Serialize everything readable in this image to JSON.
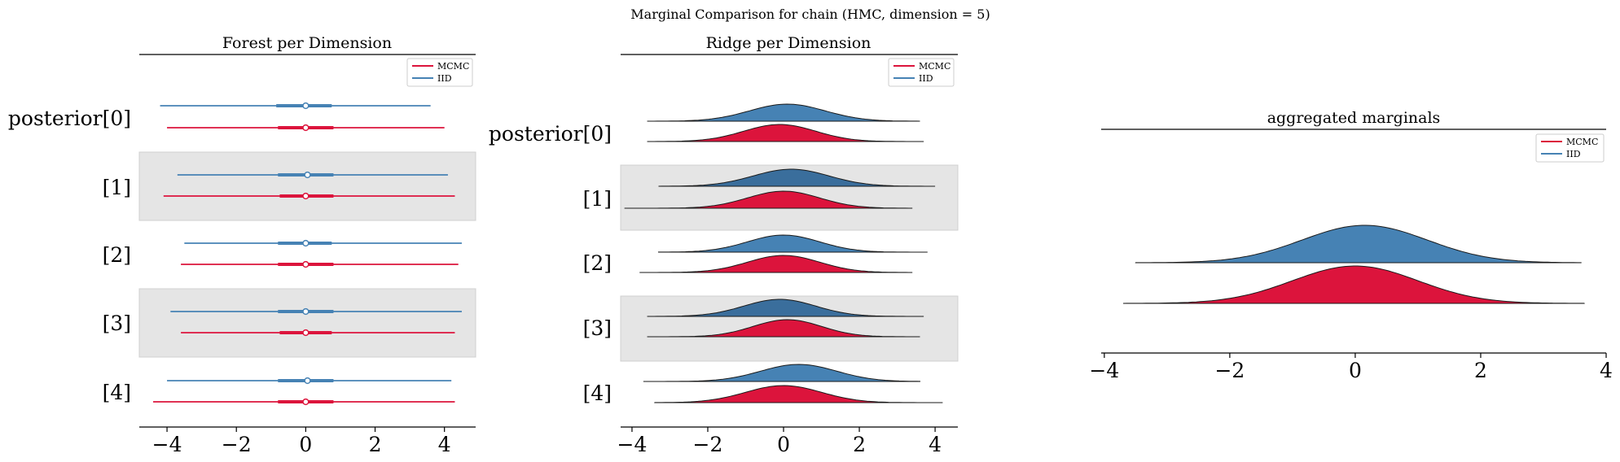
{
  "figure": {
    "suptitle": "Marginal Comparison for chain (HMC, dimension = 5)"
  },
  "colors": {
    "mcmc": "#dc143c",
    "iid": "#4682b4",
    "band": "#e5e5e5",
    "ridge_iid_dark": "#3a6e9c"
  },
  "chart_data": [
    {
      "type": "forest",
      "title": "Forest per Dimension",
      "xlim": [
        -4.8,
        4.9
      ],
      "xticks": [
        -4,
        -2,
        0,
        2,
        4
      ],
      "xtick_labels": [
        "−4",
        "−2",
        "0",
        "2",
        "4"
      ],
      "ylabels": [
        "posterior[0]",
        "[1]",
        "[2]",
        "[3]",
        "[4]"
      ],
      "shaded_rows": [
        1,
        3
      ],
      "legend": {
        "position": "top-right",
        "entries": [
          {
            "label": "MCMC",
            "color": "#dc143c"
          },
          {
            "label": "IID",
            "color": "#4682b4"
          }
        ]
      },
      "series": [
        {
          "name": "IID",
          "color": "#4682b4",
          "rows": [
            {
              "min": -4.2,
              "q25": -0.85,
              "median": 0.0,
              "q75": 0.75,
              "max": 3.6
            },
            {
              "min": -3.7,
              "q25": -0.8,
              "median": 0.05,
              "q75": 0.8,
              "max": 4.1
            },
            {
              "min": -3.5,
              "q25": -0.8,
              "median": 0.0,
              "q75": 0.75,
              "max": 4.5
            },
            {
              "min": -3.9,
              "q25": -0.8,
              "median": 0.0,
              "q75": 0.8,
              "max": 4.5
            },
            {
              "min": -4.0,
              "q25": -0.8,
              "median": 0.05,
              "q75": 0.8,
              "max": 4.2
            }
          ]
        },
        {
          "name": "MCMC",
          "color": "#dc143c",
          "rows": [
            {
              "min": -4.0,
              "q25": -0.8,
              "median": 0.0,
              "q75": 0.8,
              "max": 4.0
            },
            {
              "min": -4.1,
              "q25": -0.75,
              "median": 0.0,
              "q75": 0.8,
              "max": 4.3
            },
            {
              "min": -3.6,
              "q25": -0.8,
              "median": 0.0,
              "q75": 0.8,
              "max": 4.4
            },
            {
              "min": -3.6,
              "q25": -0.75,
              "median": 0.0,
              "q75": 0.75,
              "max": 4.3
            },
            {
              "min": -4.4,
              "q25": -0.8,
              "median": 0.0,
              "q75": 0.8,
              "max": 4.3
            }
          ]
        }
      ]
    },
    {
      "type": "ridge",
      "title": "Ridge per Dimension",
      "xlim": [
        -4.3,
        4.6
      ],
      "xticks": [
        -4,
        -2,
        0,
        2,
        4
      ],
      "xtick_labels": [
        "−4",
        "−2",
        "0",
        "2",
        "4"
      ],
      "ylabels": [
        "posterior[0]",
        "[1]",
        "[2]",
        "[3]",
        "[4]"
      ],
      "shaded_rows": [
        1,
        3
      ],
      "legend": {
        "position": "top-right",
        "entries": [
          {
            "label": "MCMC",
            "color": "#dc143c"
          },
          {
            "label": "IID",
            "color": "#4682b4"
          }
        ]
      },
      "series": [
        {
          "name": "IID",
          "color": "#4682b4",
          "rows": [
            {
              "min": -3.6,
              "max": 3.6,
              "mode": 0.1,
              "sd": 1.0
            },
            {
              "min": -3.3,
              "max": 4.0,
              "mode": 0.2,
              "sd": 1.0
            },
            {
              "min": -3.3,
              "max": 3.8,
              "mode": 0.0,
              "sd": 0.95
            },
            {
              "min": -3.6,
              "max": 3.7,
              "mode": -0.1,
              "sd": 0.95
            },
            {
              "min": -3.7,
              "max": 3.6,
              "mode": 0.4,
              "sd": 1.0
            }
          ]
        },
        {
          "name": "MCMC",
          "color": "#dc143c",
          "rows": [
            {
              "min": -3.6,
              "max": 3.7,
              "mode": -0.1,
              "sd": 0.95
            },
            {
              "min": -4.2,
              "max": 3.4,
              "mode": 0.0,
              "sd": 0.95
            },
            {
              "min": -3.8,
              "max": 3.4,
              "mode": 0.0,
              "sd": 0.95
            },
            {
              "min": -3.6,
              "max": 3.6,
              "mode": 0.1,
              "sd": 0.9
            },
            {
              "min": -3.4,
              "max": 4.2,
              "mode": 0.0,
              "sd": 1.0
            }
          ]
        }
      ]
    },
    {
      "type": "ridge",
      "title": "aggregated marginals",
      "xlim": [
        -4.05,
        4.0
      ],
      "xticks": [
        -4,
        -2,
        0,
        2,
        4
      ],
      "xtick_labels": [
        "−4",
        "−2",
        "0",
        "2",
        "4"
      ],
      "legend": {
        "position": "top-right",
        "entries": [
          {
            "label": "MCMC",
            "color": "#dc143c"
          },
          {
            "label": "IID",
            "color": "#4682b4"
          }
        ]
      },
      "series": [
        {
          "name": "IID",
          "color": "#4682b4",
          "min": -3.5,
          "max": 3.6,
          "mode": 0.15,
          "sd": 1.0
        },
        {
          "name": "MCMC",
          "color": "#dc143c",
          "min": -3.7,
          "max": 3.65,
          "mode": 0.0,
          "sd": 1.0
        }
      ]
    }
  ]
}
